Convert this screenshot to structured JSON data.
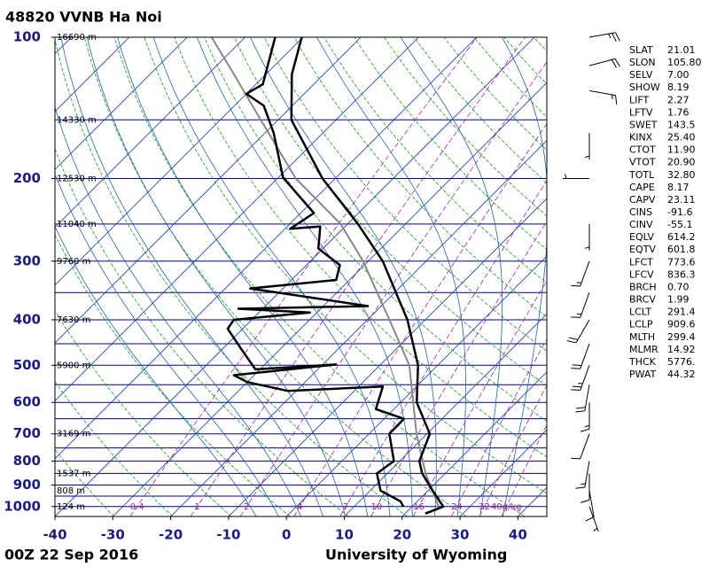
{
  "chart_data": {
    "type": "skewt",
    "title": "48820 VVNB Ha Noi",
    "time": "00Z 22 Sep 2016",
    "source": "University of Wyoming",
    "xlim": [
      -40,
      45
    ],
    "xticks": [
      -40,
      -30,
      -20,
      -10,
      0,
      10,
      20,
      30,
      40
    ],
    "ylim": [
      1050,
      100
    ],
    "yticks": [
      100,
      200,
      300,
      400,
      500,
      600,
      700,
      800,
      900,
      1000
    ],
    "log_y": true,
    "isobars": [
      100,
      150,
      200,
      250,
      300,
      350,
      400,
      450,
      500,
      550,
      600,
      650,
      700,
      750,
      800,
      850,
      900,
      950,
      1000,
      1050
    ],
    "isotherms": [
      -130,
      -120,
      -110,
      -100,
      -90,
      -80,
      -70,
      -60,
      -50,
      -40,
      -30,
      -20,
      -10,
      0,
      10,
      20,
      30,
      40
    ],
    "dry_adiabats": [
      240,
      250,
      260,
      270,
      280,
      290,
      300,
      310,
      320,
      330,
      340,
      350,
      360,
      370,
      380,
      390,
      400,
      410,
      420,
      430,
      440,
      450,
      460,
      470
    ],
    "moist_adiabats": [
      -8,
      -4,
      0,
      4,
      8,
      12,
      16,
      20,
      24,
      28,
      32,
      36
    ],
    "mixing_ratios": [
      {
        "value": 0.4,
        "label": "0.4"
      },
      1,
      2,
      4,
      7,
      10,
      16,
      24,
      32,
      {
        "value": 40,
        "label": "40g/kg"
      }
    ],
    "series": [
      {
        "color": "#888888",
        "width": 2,
        "x": [
          24.6,
          16.6,
          8.2,
          -4.9,
          -16.2,
          -30.9,
          -41.2,
          -56.8,
          -73,
          -85.5,
          -95.8
        ],
        "y": [
          1000,
          850,
          700,
          500,
          400,
          300,
          250,
          200,
          150,
          120,
          100
        ]
      },
      {
        "color": "#000000",
        "width": 2.5,
        "x": [
          23.5,
          25.4,
          20.8,
          16,
          13.4,
          10.5,
          2.8,
          -3.4,
          -13.1,
          -27.5,
          -38.2,
          -52.2,
          -67.7,
          -75.5,
          -80.2
        ],
        "y": [
          1035,
          1000,
          925,
          850,
          800,
          700,
          600,
          500,
          400,
          300,
          250,
          200,
          150,
          120,
          100
        ]
      },
      {
        "color": "#000000",
        "width": 2.5,
        "x": [
          18.5,
          17.1,
          11.8,
          8.2,
          9,
          3.5,
          3.4,
          -3.1,
          -5.8,
          -21.5,
          -30,
          -33.5,
          -17.7,
          -30.8,
          -36.2,
          -42.6,
          -43.1,
          -31.2,
          -44.2,
          -22.3,
          -45.7,
          -32.3,
          -34.2,
          -40.8,
          -44.3,
          -49.1,
          -47.7,
          -59.2,
          -68.5,
          -74.9,
          -80,
          -78.8,
          -84.8
        ],
        "y": [
          1000,
          975,
          925,
          850,
          800,
          700,
          650,
          620,
          555,
          567,
          543,
          525,
          498,
          510,
          466,
          418,
          400,
          386,
          379,
          374,
          343,
          329,
          306,
          282,
          253,
          256,
          237,
          199,
          160,
          140,
          132,
          126,
          100
        ]
      }
    ],
    "heights": [
      {
        "pressure": 100,
        "label": "16690 m"
      },
      {
        "pressure": 150,
        "label": "14330 m"
      },
      {
        "pressure": 200,
        "label": "12530 m"
      },
      {
        "pressure": 250,
        "label": "11040 m"
      },
      {
        "pressure": 300,
        "label": "9760 m"
      },
      {
        "pressure": 400,
        "label": "7630 m"
      },
      {
        "pressure": 500,
        "label": "5900 m"
      },
      {
        "pressure": 700,
        "label": "3169 m"
      },
      {
        "pressure": 850,
        "label": "1537 m"
      },
      {
        "pressure": 925,
        "label": "808 m"
      },
      {
        "pressure": 1000,
        "label": "124 m"
      }
    ],
    "winds": [
      {
        "pressure": 100,
        "direction": 80,
        "speed": 25
      },
      {
        "pressure": 115,
        "direction": 75,
        "speed": 20
      },
      {
        "pressure": 130,
        "direction": 100,
        "speed": 15
      },
      {
        "pressure": 160,
        "direction": 180,
        "speed": 5
      },
      {
        "pressure": 200,
        "direction": 270,
        "speed": 5
      },
      {
        "pressure": 250,
        "direction": 180,
        "speed": 5
      },
      {
        "pressure": 300,
        "direction": 200,
        "speed": 15
      },
      {
        "pressure": 350,
        "direction": 200,
        "speed": 15
      },
      {
        "pressure": 400,
        "direction": 210,
        "speed": 20
      },
      {
        "pressure": 450,
        "direction": 200,
        "speed": 20
      },
      {
        "pressure": 500,
        "direction": 200,
        "speed": 25
      },
      {
        "pressure": 550,
        "direction": 190,
        "speed": 20
      },
      {
        "pressure": 600,
        "direction": 180,
        "speed": 15
      },
      {
        "pressure": 700,
        "direction": 200,
        "speed": 10
      },
      {
        "pressure": 800,
        "direction": 190,
        "speed": 15
      },
      {
        "pressure": 850,
        "direction": 180,
        "speed": 10
      },
      {
        "pressure": 925,
        "direction": 170,
        "speed": 10
      },
      {
        "pressure": 1000,
        "direction": 160,
        "speed": 5
      }
    ],
    "indices": [
      {
        "name": "SLAT",
        "value": "21.01"
      },
      {
        "name": "SLON",
        "value": "105.80"
      },
      {
        "name": "SELV",
        "value": "7.00"
      },
      {
        "name": "SHOW",
        "value": "8.19"
      },
      {
        "name": "LIFT",
        "value": "2.27"
      },
      {
        "name": "LFTV",
        "value": "1.76"
      },
      {
        "name": "SWET",
        "value": "143.5"
      },
      {
        "name": "KINX",
        "value": "25.40"
      },
      {
        "name": "CTOT",
        "value": "11.90"
      },
      {
        "name": "VTOT",
        "value": "20.90"
      },
      {
        "name": "TOTL",
        "value": "32.80"
      },
      {
        "name": "CAPE",
        "value": "8.17"
      },
      {
        "name": "CAPV",
        "value": "23.11"
      },
      {
        "name": "CINS",
        "value": "-91.6"
      },
      {
        "name": "CINV",
        "value": "-55.1"
      },
      {
        "name": "EQLV",
        "value": "614.2"
      },
      {
        "name": "EQTV",
        "value": "601.8"
      },
      {
        "name": "LFCT",
        "value": "773.6"
      },
      {
        "name": "LFCV",
        "value": "836.3"
      },
      {
        "name": "BRCH",
        "value": "0.70"
      },
      {
        "name": "BRCV",
        "value": "1.99"
      },
      {
        "name": "LCLT",
        "value": "291.4"
      },
      {
        "name": "LCLP",
        "value": "909.6"
      },
      {
        "name": "MLTH",
        "value": "299.4"
      },
      {
        "name": "MLMR",
        "value": "14.92"
      },
      {
        "name": "THCK",
        "value": "5776."
      },
      {
        "name": "PWAT",
        "value": "44.32"
      }
    ]
  }
}
